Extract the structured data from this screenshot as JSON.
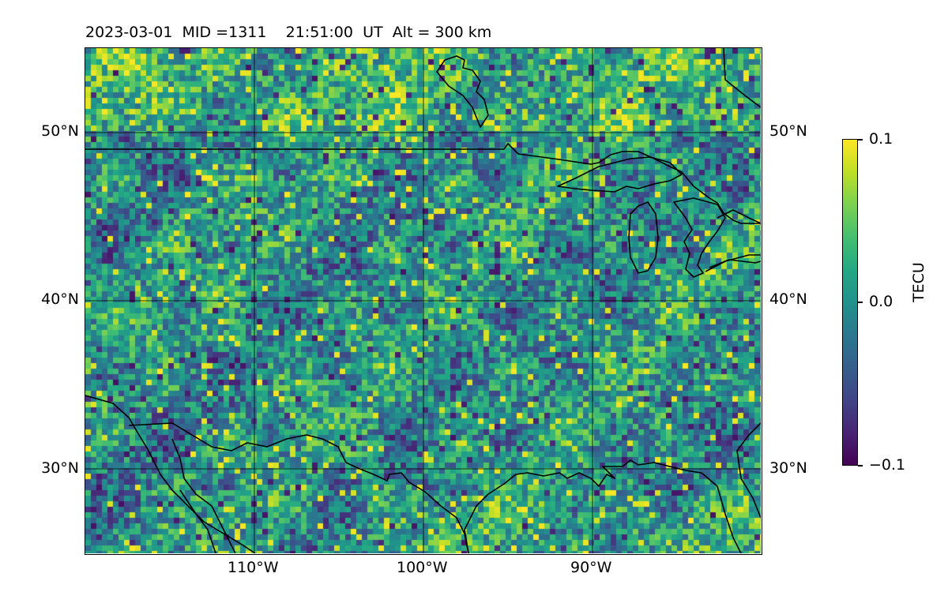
{
  "title": {
    "date": "2023-03-01",
    "mid": "MID =1311",
    "time": "21:51:00",
    "time_zone": "UT",
    "altitude": "Alt = 300 km"
  },
  "map": {
    "projection": "equirectangular",
    "lon_range": [
      -120,
      -80
    ],
    "lat_range": [
      25,
      55
    ],
    "gridlines": true,
    "coastlines_color": "#000000"
  },
  "axes": {
    "lat_ticks": [
      "50°N",
      "40°N",
      "30°N"
    ],
    "lon_ticks": [
      "110°W",
      "100°W",
      "90°W"
    ]
  },
  "colorbar": {
    "label": "TECU",
    "colormap": "viridis",
    "vmin": -0.1,
    "vmax": 0.1,
    "tick_labels": [
      "0.1",
      "0.0",
      "−0.1"
    ]
  },
  "colors": {
    "viridis_low": "#440154",
    "viridis_mid": "#21918c",
    "viridis_high": "#fde725"
  }
}
